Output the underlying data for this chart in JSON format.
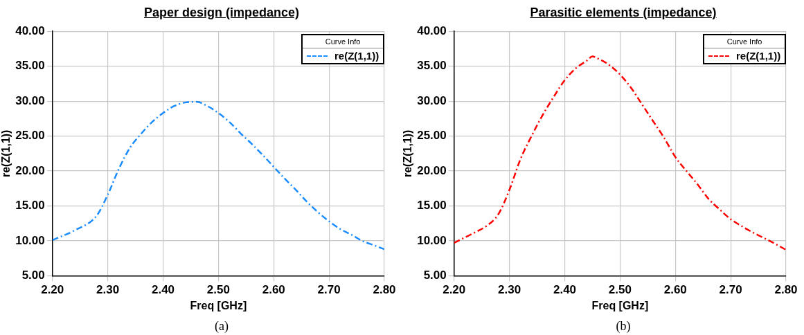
{
  "chart_data": [
    {
      "type": "line",
      "title": "Paper design (impedance)",
      "xlabel": "Freq [GHz]",
      "ylabel": "re(Z(1,1))",
      "legend_title": "Curve Info",
      "legend": "top right",
      "grid": true,
      "marker": "none",
      "line_style": "dashed",
      "x": [
        2.2,
        2.24,
        2.28,
        2.3,
        2.32,
        2.34,
        2.36,
        2.38,
        2.4,
        2.42,
        2.44,
        2.46,
        2.48,
        2.5,
        2.52,
        2.54,
        2.56,
        2.58,
        2.6,
        2.62,
        2.64,
        2.66,
        2.68,
        2.7,
        2.72,
        2.74,
        2.76,
        2.78,
        2.8
      ],
      "series": [
        {
          "name": "re(Z(1,1))",
          "color": "#1a8cff",
          "values": [
            10.1,
            11.5,
            13.6,
            16.6,
            20.3,
            23.3,
            25.3,
            27.0,
            28.3,
            29.3,
            29.8,
            29.9,
            29.3,
            28.3,
            27.0,
            25.4,
            23.9,
            22.3,
            20.6,
            18.9,
            17.3,
            15.6,
            14.1,
            12.8,
            11.7,
            10.9,
            10.0,
            9.4,
            8.8
          ]
        }
      ],
      "xlim": [
        2.2,
        2.8
      ],
      "xticks": [
        {
          "value": 2.2,
          "label": "2.20"
        },
        {
          "value": 2.3,
          "label": "2.30"
        },
        {
          "value": 2.4,
          "label": "2.40"
        },
        {
          "value": 2.5,
          "label": "2.50"
        },
        {
          "value": 2.6,
          "label": "2.60"
        },
        {
          "value": 2.7,
          "label": "2.70"
        },
        {
          "value": 2.8,
          "label": "2.80"
        }
      ],
      "ylim": [
        5,
        40
      ],
      "yticks": [
        {
          "value": 5,
          "label": "5.00"
        },
        {
          "value": 10,
          "label": "10.00"
        },
        {
          "value": 15,
          "label": "15.00"
        },
        {
          "value": 20,
          "label": "20.00"
        },
        {
          "value": 25,
          "label": "25.00"
        },
        {
          "value": 30,
          "label": "30.00"
        },
        {
          "value": 35,
          "label": "35.00"
        },
        {
          "value": 40,
          "label": "40.00"
        }
      ],
      "annotations": [
        "(a)"
      ]
    },
    {
      "type": "line",
      "title": "Parasitic elements (impedance)",
      "xlabel": "Freq [GHz]",
      "ylabel": "re(Z(1,1))",
      "legend_title": "Curve Info",
      "legend": "top right",
      "grid": true,
      "marker": "none",
      "line_style": "dashed",
      "x": [
        2.2,
        2.22,
        2.24,
        2.26,
        2.28,
        2.3,
        2.32,
        2.34,
        2.36,
        2.38,
        2.4,
        2.42,
        2.44,
        2.45,
        2.46,
        2.48,
        2.5,
        2.52,
        2.54,
        2.56,
        2.58,
        2.6,
        2.62,
        2.64,
        2.66,
        2.68,
        2.7,
        2.72,
        2.74,
        2.76,
        2.78,
        2.8
      ],
      "series": [
        {
          "name": "re(Z(1,1))",
          "color": "#ff0000",
          "values": [
            9.7,
            10.5,
            11.3,
            12.2,
            13.8,
            17.3,
            21.7,
            25.0,
            28.0,
            30.6,
            33.0,
            34.7,
            35.8,
            36.4,
            36.1,
            35.2,
            33.8,
            31.9,
            29.5,
            27.1,
            24.7,
            22.0,
            20.0,
            18.1,
            16.0,
            14.5,
            13.1,
            12.1,
            11.2,
            10.4,
            9.6,
            8.7
          ]
        }
      ],
      "xlim": [
        2.2,
        2.8
      ],
      "xticks": [
        {
          "value": 2.2,
          "label": "2.20"
        },
        {
          "value": 2.3,
          "label": "2.30"
        },
        {
          "value": 2.4,
          "label": "2.40"
        },
        {
          "value": 2.5,
          "label": "2.50"
        },
        {
          "value": 2.6,
          "label": "2.60"
        },
        {
          "value": 2.7,
          "label": "2.70"
        },
        {
          "value": 2.8,
          "label": "2.80"
        }
      ],
      "ylim": [
        5,
        40
      ],
      "yticks": [
        {
          "value": 5,
          "label": "5.00"
        },
        {
          "value": 10,
          "label": "10.00"
        },
        {
          "value": 15,
          "label": "15.00"
        },
        {
          "value": 20,
          "label": "20.00"
        },
        {
          "value": 25,
          "label": "25.00"
        },
        {
          "value": 30,
          "label": "30.00"
        },
        {
          "value": 35,
          "label": "35.00"
        },
        {
          "value": 40,
          "label": "40.00"
        }
      ],
      "annotations": [
        "(b)"
      ]
    }
  ]
}
